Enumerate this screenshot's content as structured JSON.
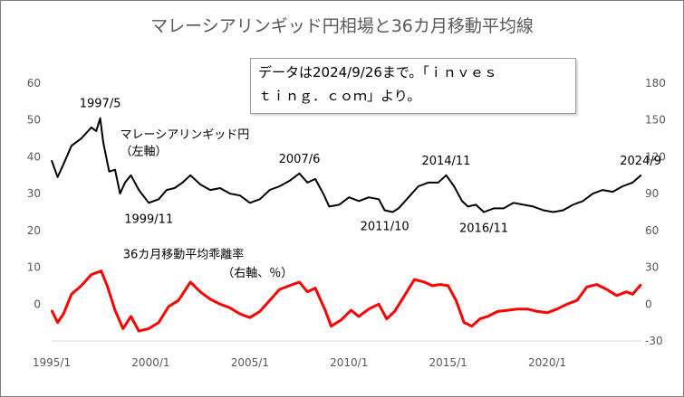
{
  "chart_data": {
    "type": "line",
    "title": "マレーシアリンギッド円相場と36カ月移動平均線",
    "note_line1": "データは2024/9/26まで。「ｉｎｖｅｓ",
    "note_line2": "ｔｉｎｇ．ｃｏｍ」より。",
    "x_range": [
      1995.0,
      2024.75
    ],
    "x_ticks": [
      {
        "label": "1995/1",
        "x": 1995.0
      },
      {
        "label": "2000/1",
        "x": 2000.0
      },
      {
        "label": "2005/1",
        "x": 2005.0
      },
      {
        "label": "2010/1",
        "x": 2010.0
      },
      {
        "label": "2015/1",
        "x": 2015.0
      },
      {
        "label": "2020/1",
        "x": 2020.0
      }
    ],
    "y_left": {
      "ticks": [
        60,
        50,
        40,
        30,
        20,
        10,
        0
      ],
      "range": [
        -10,
        60
      ]
    },
    "y_right": {
      "ticks": [
        180,
        150,
        120,
        90,
        60,
        30,
        0,
        -30
      ],
      "range": [
        -30,
        180
      ]
    },
    "series": [
      {
        "name": "マレーシアリンギッド円",
        "axis": "left",
        "color": "#000000",
        "points": [
          [
            1995.0,
            39
          ],
          [
            1995.3,
            34.5
          ],
          [
            1995.6,
            38
          ],
          [
            1996.0,
            43
          ],
          [
            1996.5,
            45
          ],
          [
            1997.0,
            48
          ],
          [
            1997.25,
            47
          ],
          [
            1997.45,
            50.5
          ],
          [
            1997.6,
            44
          ],
          [
            1997.9,
            36
          ],
          [
            1998.2,
            36.5
          ],
          [
            1998.45,
            30
          ],
          [
            1998.7,
            33
          ],
          [
            1999.0,
            35
          ],
          [
            1999.4,
            31
          ],
          [
            1999.9,
            27.5
          ],
          [
            2000.4,
            28.5
          ],
          [
            2000.8,
            31
          ],
          [
            2001.2,
            31.5
          ],
          [
            2001.6,
            33
          ],
          [
            2002.0,
            35
          ],
          [
            2002.5,
            32.5
          ],
          [
            2003.0,
            31
          ],
          [
            2003.5,
            31.5
          ],
          [
            2004.0,
            30
          ],
          [
            2004.5,
            29.5
          ],
          [
            2005.0,
            27.5
          ],
          [
            2005.5,
            28.5
          ],
          [
            2006.0,
            31
          ],
          [
            2006.5,
            32
          ],
          [
            2007.0,
            33.5
          ],
          [
            2007.5,
            35.5
          ],
          [
            2007.9,
            33
          ],
          [
            2008.3,
            34
          ],
          [
            2008.7,
            30
          ],
          [
            2009.0,
            26.5
          ],
          [
            2009.5,
            27
          ],
          [
            2010.0,
            29
          ],
          [
            2010.5,
            28
          ],
          [
            2011.0,
            29
          ],
          [
            2011.5,
            28.5
          ],
          [
            2011.8,
            25.5
          ],
          [
            2012.2,
            25
          ],
          [
            2012.5,
            26
          ],
          [
            2013.0,
            29
          ],
          [
            2013.5,
            32
          ],
          [
            2014.0,
            33
          ],
          [
            2014.5,
            33
          ],
          [
            2014.9,
            35
          ],
          [
            2015.3,
            32
          ],
          [
            2015.7,
            28
          ],
          [
            2016.0,
            26.5
          ],
          [
            2016.4,
            27
          ],
          [
            2016.8,
            25
          ],
          [
            2017.3,
            26
          ],
          [
            2017.8,
            26
          ],
          [
            2018.3,
            27.5
          ],
          [
            2018.8,
            27
          ],
          [
            2019.3,
            26.5
          ],
          [
            2019.8,
            25.5
          ],
          [
            2020.3,
            25
          ],
          [
            2020.8,
            25.5
          ],
          [
            2021.3,
            27
          ],
          [
            2021.8,
            28
          ],
          [
            2022.3,
            30
          ],
          [
            2022.8,
            31
          ],
          [
            2023.3,
            30.5
          ],
          [
            2023.8,
            32
          ],
          [
            2024.3,
            33
          ],
          [
            2024.73,
            35
          ]
        ]
      },
      {
        "name": "36カ月移動平均乖離率",
        "axis": "right",
        "color": "#ff0000",
        "points": [
          [
            1995.0,
            -5
          ],
          [
            1995.3,
            -15
          ],
          [
            1995.6,
            -8
          ],
          [
            1996.0,
            8
          ],
          [
            1996.5,
            15
          ],
          [
            1997.0,
            24
          ],
          [
            1997.5,
            27
          ],
          [
            1997.8,
            15
          ],
          [
            1998.2,
            -5
          ],
          [
            1998.6,
            -20
          ],
          [
            1999.0,
            -10
          ],
          [
            1999.4,
            -22
          ],
          [
            1999.9,
            -20
          ],
          [
            2000.4,
            -15
          ],
          [
            2000.9,
            -2
          ],
          [
            2001.4,
            3
          ],
          [
            2002.0,
            18
          ],
          [
            2002.5,
            10
          ],
          [
            2003.0,
            4
          ],
          [
            2003.5,
            0
          ],
          [
            2004.0,
            -3
          ],
          [
            2004.5,
            -8
          ],
          [
            2005.0,
            -11
          ],
          [
            2005.5,
            -6
          ],
          [
            2006.0,
            3
          ],
          [
            2006.5,
            12
          ],
          [
            2007.0,
            15
          ],
          [
            2007.5,
            18
          ],
          [
            2007.9,
            10
          ],
          [
            2008.3,
            13
          ],
          [
            2008.8,
            -5
          ],
          [
            2009.1,
            -18
          ],
          [
            2009.6,
            -13
          ],
          [
            2010.1,
            -5
          ],
          [
            2010.5,
            -10
          ],
          [
            2011.0,
            -4
          ],
          [
            2011.5,
            0
          ],
          [
            2011.9,
            -12
          ],
          [
            2012.3,
            -6
          ],
          [
            2012.8,
            7
          ],
          [
            2013.3,
            20
          ],
          [
            2013.8,
            18
          ],
          [
            2014.2,
            15
          ],
          [
            2014.6,
            16
          ],
          [
            2015.0,
            15
          ],
          [
            2015.4,
            3
          ],
          [
            2015.8,
            -15
          ],
          [
            2016.2,
            -18
          ],
          [
            2016.6,
            -12
          ],
          [
            2017.0,
            -10
          ],
          [
            2017.5,
            -6
          ],
          [
            2018.0,
            -5
          ],
          [
            2018.5,
            -4
          ],
          [
            2019.0,
            -4
          ],
          [
            2019.5,
            -6
          ],
          [
            2020.0,
            -7
          ],
          [
            2020.5,
            -4
          ],
          [
            2021.0,
            0
          ],
          [
            2021.5,
            3
          ],
          [
            2022.0,
            14
          ],
          [
            2022.5,
            16
          ],
          [
            2023.0,
            12
          ],
          [
            2023.5,
            7
          ],
          [
            2024.0,
            10
          ],
          [
            2024.3,
            8
          ],
          [
            2024.73,
            16
          ]
        ]
      }
    ],
    "annotations": [
      {
        "text": "1997/5",
        "x": 1997.45,
        "y": 50.5,
        "axis": "left",
        "pos": "above"
      },
      {
        "text": "マレーシアリンギッド円",
        "x": 1998.45,
        "y": 45,
        "axis": "left",
        "pos": "label"
      },
      {
        "text": "（左軸）",
        "x": 1998.45,
        "y": 40.5,
        "axis": "left",
        "pos": "label"
      },
      {
        "text": "1999/11",
        "x": 1999.9,
        "y": 27.5,
        "axis": "left",
        "pos": "below"
      },
      {
        "text": "2007/6",
        "x": 2007.5,
        "y": 35.5,
        "axis": "left",
        "pos": "above"
      },
      {
        "text": "2011/10",
        "x": 2011.8,
        "y": 25.5,
        "axis": "left",
        "pos": "below"
      },
      {
        "text": "2014/11",
        "x": 2014.9,
        "y": 35,
        "axis": "left",
        "pos": "above"
      },
      {
        "text": "2016/11",
        "x": 2016.8,
        "y": 25,
        "axis": "left",
        "pos": "below"
      },
      {
        "text": "2024/9",
        "x": 2024.73,
        "y": 35,
        "axis": "left",
        "pos": "above"
      },
      {
        "text": "36カ月移動平均乖離率",
        "x": 1998.6,
        "y": 12.5,
        "axis": "left",
        "pos": "label"
      },
      {
        "text": "（右軸、％）",
        "x": 2003.6,
        "y": 7.5,
        "axis": "left",
        "pos": "label"
      }
    ],
    "grid": false,
    "legend": "none"
  }
}
